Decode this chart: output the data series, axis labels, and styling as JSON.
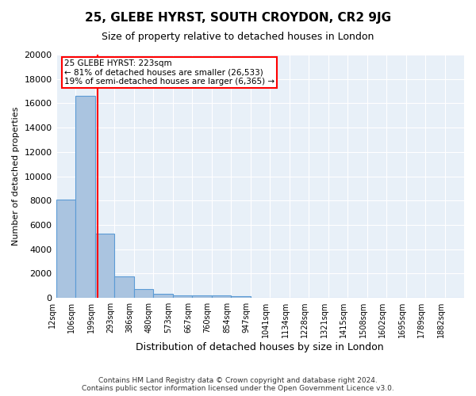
{
  "title": "25, GLEBE HYRST, SOUTH CROYDON, CR2 9JG",
  "subtitle": "Size of property relative to detached houses in London",
  "xlabel": "Distribution of detached houses by size in London",
  "ylabel": "Number of detached properties",
  "bar_color": "#aac4e0",
  "bar_edge_color": "#5b9bd5",
  "background_color": "#e8f0f8",
  "grid_color": "#ffffff",
  "bin_labels": [
    "12sqm",
    "106sqm",
    "199sqm",
    "293sqm",
    "386sqm",
    "480sqm",
    "573sqm",
    "667sqm",
    "760sqm",
    "854sqm",
    "947sqm",
    "1041sqm",
    "1134sqm",
    "1228sqm",
    "1321sqm",
    "1415sqm",
    "1508sqm",
    "1602sqm",
    "1695sqm",
    "1789sqm",
    "1882sqm"
  ],
  "bar_heights": [
    8100,
    16600,
    5300,
    1750,
    700,
    320,
    230,
    200,
    175,
    150,
    0,
    0,
    0,
    0,
    0,
    0,
    0,
    0,
    0,
    0,
    0
  ],
  "pct_smaller": 81,
  "n_smaller": 26533,
  "pct_larger_semi": 19,
  "n_larger_semi": 6365,
  "vline_position": 2.15,
  "footer_text": "Contains HM Land Registry data © Crown copyright and database right 2024.\nContains public sector information licensed under the Open Government Licence v3.0.",
  "ylim": [
    0,
    20000
  ],
  "yticks": [
    0,
    2000,
    4000,
    6000,
    8000,
    10000,
    12000,
    14000,
    16000,
    18000,
    20000
  ]
}
